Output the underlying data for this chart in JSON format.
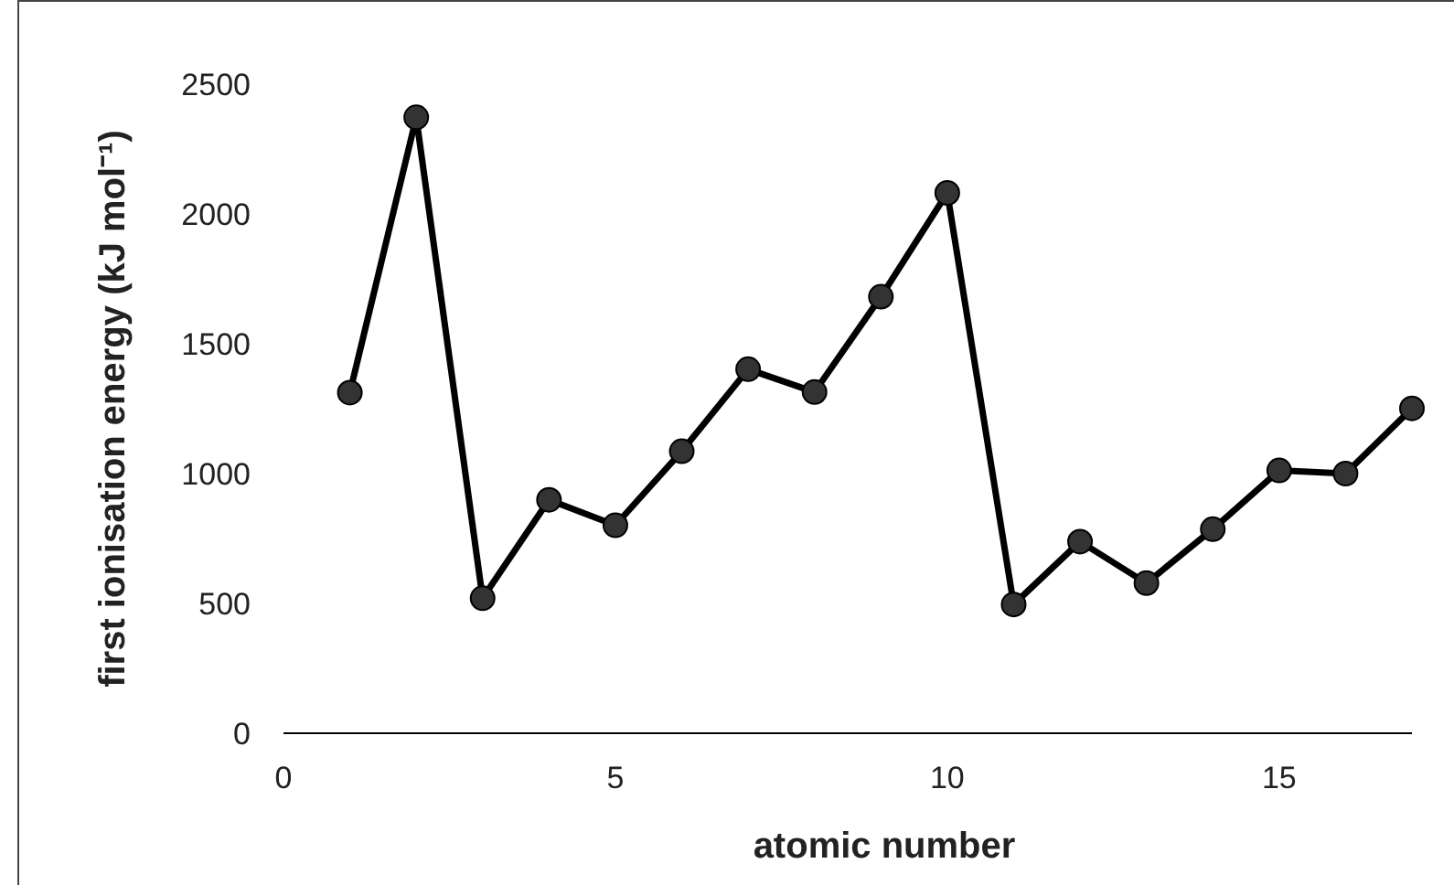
{
  "chart_data": {
    "type": "line",
    "xlabel": "atomic number",
    "ylabel": "first ionisation energy (kJ mol⁻¹)",
    "x": [
      1,
      2,
      3,
      4,
      5,
      6,
      7,
      8,
      9,
      10,
      11,
      12,
      13,
      14,
      15,
      16,
      17
    ],
    "series": [
      {
        "color": "#000000",
        "values": [
          1312,
          2372,
          520,
          899,
          801,
          1086,
          1402,
          1314,
          1681,
          2081,
          496,
          738,
          578,
          786,
          1012,
          1000,
          1251
        ]
      }
    ],
    "xlim": [
      0,
      17
    ],
    "xticks": [
      0,
      5,
      10,
      15
    ],
    "ylim": [
      0,
      2500
    ],
    "yticks": [
      0,
      500,
      1000,
      1500,
      2000,
      2500
    ],
    "grid": false,
    "marker": "circle",
    "line_style": "solid"
  }
}
